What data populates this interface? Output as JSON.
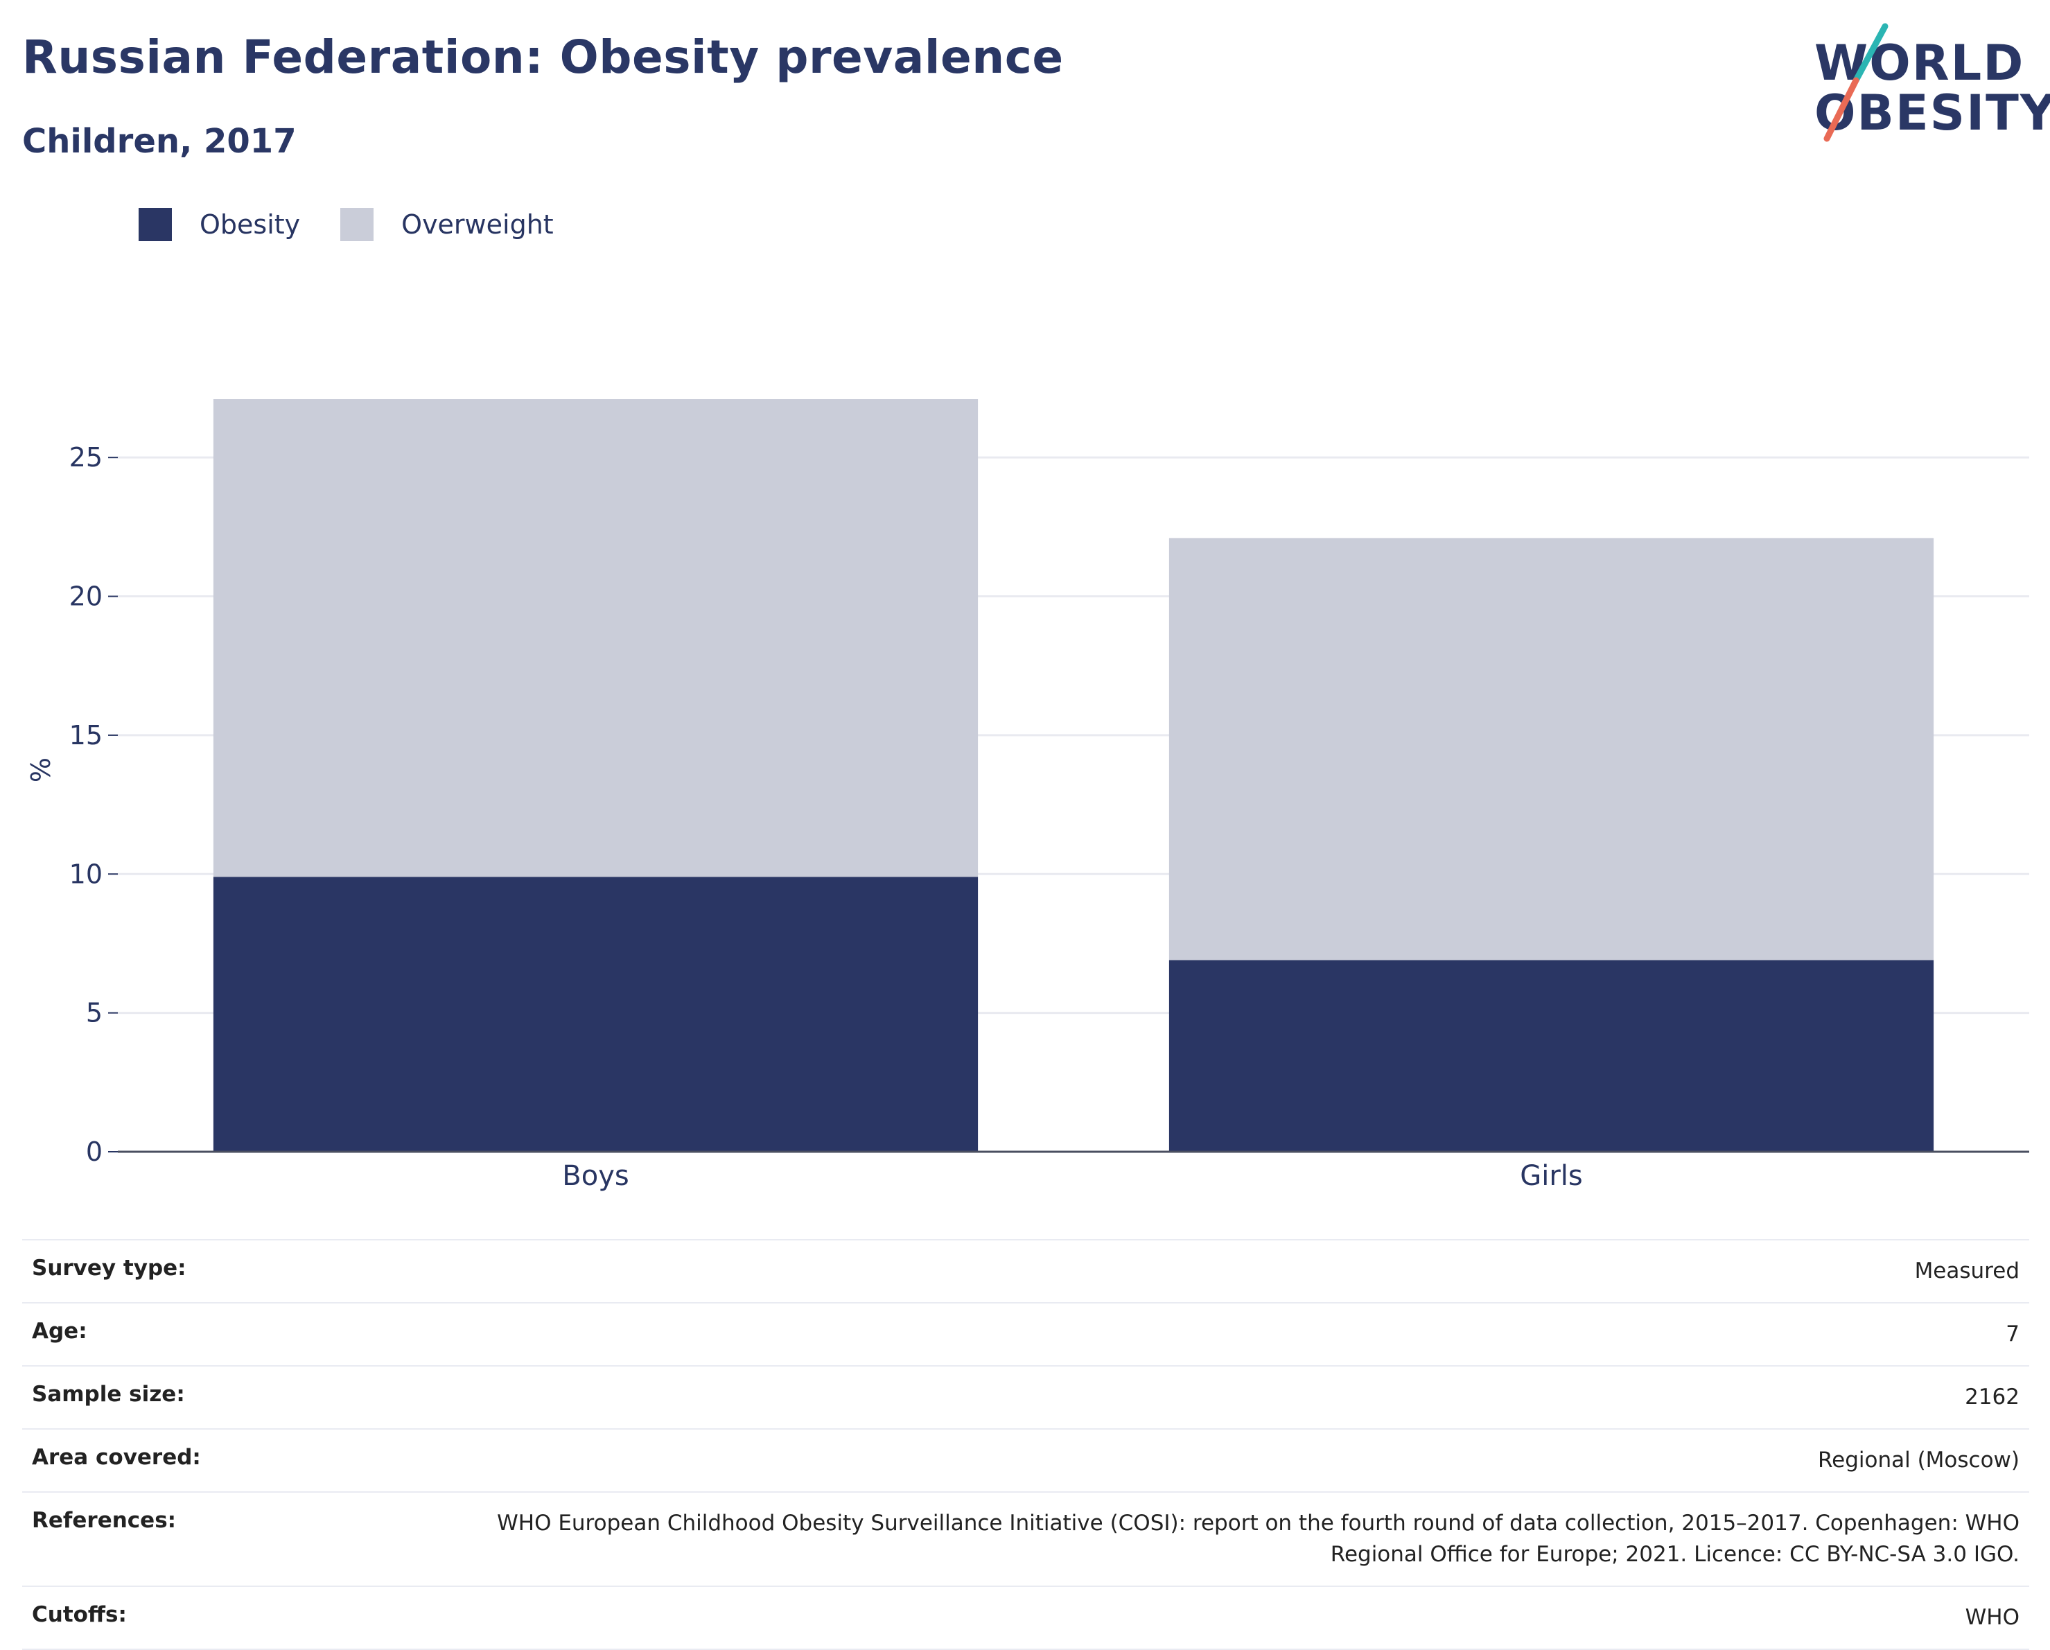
{
  "header": {
    "title": "Russian Federation: Obesity prevalence",
    "subtitle": "Children, 2017"
  },
  "logo": {
    "line1": "WORLD",
    "line2": "OBESITY"
  },
  "colors": {
    "obesity": "#2a3664",
    "overweight": "#cacdd9",
    "text": "#283562",
    "accent_teal": "#2bb5b3",
    "accent_coral": "#e96a55"
  },
  "legend": [
    {
      "label": "Obesity",
      "color": "#2a3664"
    },
    {
      "label": "Overweight",
      "color": "#cacdd9"
    }
  ],
  "chart_data": {
    "type": "bar",
    "stacked": true,
    "categories": [
      "Boys",
      "Girls"
    ],
    "series": [
      {
        "name": "Obesity",
        "values": [
          9.9,
          6.9
        ]
      },
      {
        "name": "Overweight",
        "values": [
          17.2,
          15.2
        ]
      }
    ],
    "ylabel": "%",
    "xlabel": "",
    "ylim": [
      0,
      27.5
    ],
    "yticks": [
      0,
      5,
      10,
      15,
      20,
      25
    ],
    "grid": true,
    "legend_position": "top-left"
  },
  "info_table": [
    {
      "label": "Survey type:",
      "value": "Measured"
    },
    {
      "label": "Age:",
      "value": "7"
    },
    {
      "label": "Sample size:",
      "value": "2162"
    },
    {
      "label": "Area covered:",
      "value": "Regional (Moscow)"
    },
    {
      "label": "References:",
      "value": "WHO European Childhood Obesity Surveillance Initiative (COSI): report on the fourth round of data collection, 2015–2017. Copenhagen: WHO Regional Office for Europe; 2021. Licence: CC BY-NC-SA 3.0 IGO."
    },
    {
      "label": "Cutoffs:",
      "value": "WHO"
    }
  ]
}
